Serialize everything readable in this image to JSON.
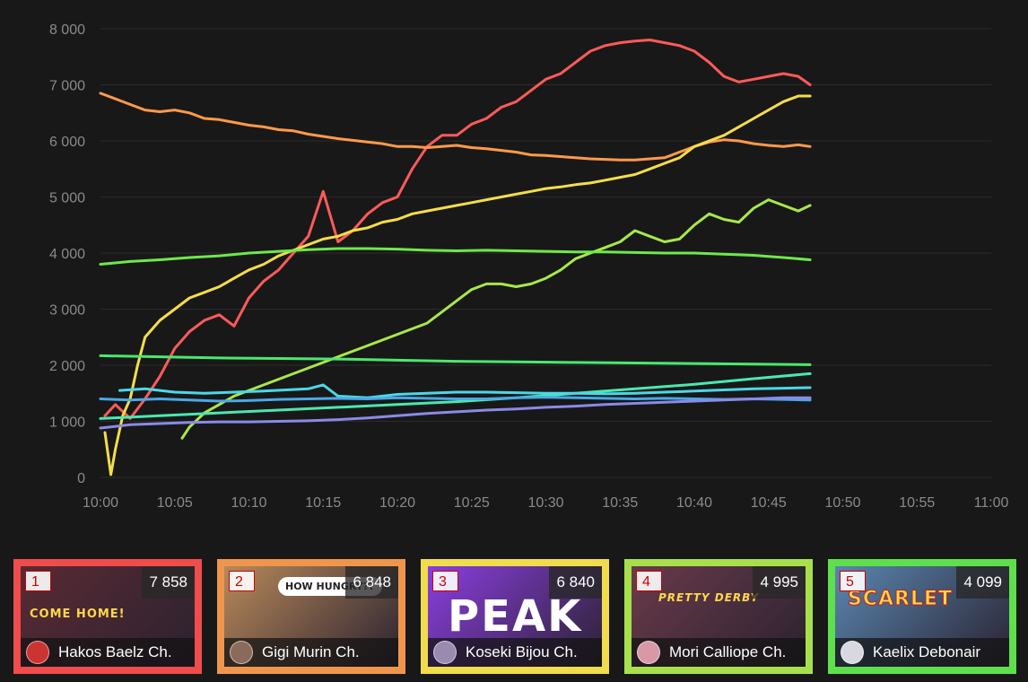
{
  "chart_data": {
    "type": "line",
    "x_ticks": [
      "10:00",
      "10:05",
      "10:10",
      "10:15",
      "10:20",
      "10:25",
      "10:30",
      "10:35",
      "10:40",
      "10:45",
      "10:50",
      "10:55",
      "11:00"
    ],
    "y_ticks": [
      "0",
      "1 000",
      "2 000",
      "3 000",
      "4 000",
      "5 000",
      "6 000",
      "7 000",
      "8 000"
    ],
    "xlim_minutes": [
      0,
      60
    ],
    "ylim": [
      0,
      8000
    ],
    "grid": "horizontal",
    "series": [
      {
        "color": "#ff5a5a",
        "x": [
          0.3,
          1,
          2,
          3,
          4,
          5,
          6,
          7,
          8,
          9,
          10,
          11,
          12,
          13,
          14,
          15,
          16,
          17,
          18,
          19,
          20,
          21,
          22,
          23,
          24,
          25,
          26,
          27,
          28,
          29,
          30,
          31,
          32,
          33,
          34,
          35,
          36,
          37,
          38,
          39,
          40,
          41,
          42,
          43,
          44,
          45,
          46,
          47,
          47.8
        ],
        "y": [
          1100,
          1300,
          1050,
          1400,
          1800,
          2300,
          2600,
          2800,
          2900,
          2700,
          3200,
          3500,
          3700,
          4000,
          4300,
          5100,
          4200,
          4400,
          4700,
          4900,
          5000,
          5500,
          5900,
          6100,
          6100,
          6300,
          6400,
          6600,
          6700,
          6900,
          7100,
          7200,
          7400,
          7600,
          7700,
          7750,
          7780,
          7800,
          7750,
          7700,
          7600,
          7400,
          7150,
          7050,
          7100,
          7150,
          7200,
          7150,
          7000
        ]
      },
      {
        "color": "#ff9a4a",
        "x": [
          0,
          1,
          2,
          3,
          4,
          5,
          6,
          7,
          8,
          9,
          10,
          11,
          12,
          13,
          14,
          15,
          16,
          17,
          18,
          19,
          20,
          21,
          22,
          23,
          24,
          25,
          26,
          27,
          28,
          29,
          30,
          31,
          32,
          33,
          34,
          35,
          36,
          37,
          38,
          39,
          40,
          41,
          42,
          43,
          44,
          45,
          46,
          47,
          47.8
        ],
        "y": [
          6850,
          6750,
          6650,
          6550,
          6520,
          6550,
          6500,
          6400,
          6380,
          6330,
          6280,
          6250,
          6200,
          6180,
          6120,
          6080,
          6040,
          6010,
          5980,
          5950,
          5900,
          5900,
          5880,
          5900,
          5920,
          5880,
          5860,
          5830,
          5800,
          5750,
          5740,
          5720,
          5700,
          5680,
          5670,
          5660,
          5660,
          5680,
          5700,
          5800,
          5900,
          5980,
          6020,
          6000,
          5950,
          5920,
          5900,
          5930,
          5900
        ]
      },
      {
        "color": "#f5dd4a",
        "x": [
          0.3,
          0.7,
          1,
          1.5,
          2,
          2.5,
          3,
          4,
          5,
          6,
          7,
          8,
          9,
          10,
          11,
          12,
          13,
          14,
          15,
          16,
          17,
          18,
          19,
          20,
          21,
          22,
          23,
          24,
          25,
          26,
          27,
          28,
          29,
          30,
          31,
          32,
          33,
          34,
          35,
          36,
          37,
          38,
          39,
          40,
          41,
          42,
          43,
          44,
          45,
          46,
          47,
          47.8
        ],
        "y": [
          800,
          50,
          500,
          1100,
          1400,
          2000,
          2500,
          2800,
          3000,
          3200,
          3300,
          3400,
          3550,
          3700,
          3800,
          3950,
          4050,
          4150,
          4250,
          4300,
          4400,
          4450,
          4550,
          4600,
          4700,
          4750,
          4800,
          4850,
          4900,
          4950,
          5000,
          5050,
          5100,
          5150,
          5180,
          5220,
          5250,
          5300,
          5350,
          5400,
          5500,
          5600,
          5700,
          5900,
          6000,
          6100,
          6250,
          6400,
          6550,
          6700,
          6800,
          6800
        ]
      },
      {
        "color": "#a8e84a",
        "x": [
          5.5,
          6,
          7,
          8,
          9,
          10,
          11,
          12,
          13,
          14,
          15,
          16,
          17,
          18,
          19,
          20,
          21,
          22,
          23,
          24,
          25,
          26,
          27,
          28,
          29,
          30,
          31,
          32,
          33,
          34,
          35,
          36,
          37,
          38,
          39,
          40,
          41,
          42,
          43,
          44,
          45,
          46,
          47,
          47.8
        ],
        "y": [
          700,
          900,
          1150,
          1300,
          1450,
          1550,
          1650,
          1750,
          1850,
          1950,
          2050,
          2150,
          2250,
          2350,
          2450,
          2550,
          2650,
          2750,
          2950,
          3150,
          3350,
          3450,
          3450,
          3400,
          3450,
          3550,
          3700,
          3900,
          4000,
          4100,
          4200,
          4400,
          4300,
          4200,
          4250,
          4500,
          4700,
          4600,
          4550,
          4800,
          4950,
          4850,
          4750,
          4850
        ]
      },
      {
        "color": "#6ee84a",
        "x": [
          0,
          2,
          4,
          6,
          8,
          10,
          12,
          14,
          16,
          18,
          20,
          22,
          24,
          26,
          28,
          30,
          32,
          34,
          36,
          38,
          40,
          42,
          44,
          46,
          47.8
        ],
        "y": [
          3800,
          3850,
          3880,
          3920,
          3950,
          4000,
          4030,
          4060,
          4080,
          4080,
          4070,
          4050,
          4040,
          4050,
          4040,
          4030,
          4020,
          4020,
          4010,
          4000,
          4000,
          3980,
          3960,
          3920,
          3880
        ]
      },
      {
        "color": "#4ae870",
        "x": [
          0,
          4,
          8,
          12,
          16,
          20,
          24,
          28,
          32,
          36,
          40,
          44,
          47.8
        ],
        "y": [
          2170,
          2150,
          2130,
          2120,
          2110,
          2090,
          2070,
          2060,
          2050,
          2040,
          2030,
          2020,
          2010
        ]
      },
      {
        "color": "#4ae8b0",
        "x": [
          0,
          4,
          8,
          12,
          16,
          20,
          24,
          28,
          32,
          36,
          40,
          44,
          47.8
        ],
        "y": [
          1050,
          1100,
          1150,
          1200,
          1250,
          1300,
          1350,
          1420,
          1500,
          1580,
          1660,
          1760,
          1850
        ]
      },
      {
        "color": "#4ad8e8",
        "x": [
          1.3,
          3,
          5,
          7,
          9,
          11,
          14,
          15,
          16,
          18,
          20,
          22,
          24,
          26,
          28,
          30,
          32,
          34,
          36,
          38,
          40,
          42,
          44,
          46,
          47.8
        ],
        "y": [
          1550,
          1580,
          1520,
          1500,
          1520,
          1540,
          1580,
          1650,
          1450,
          1420,
          1480,
          1500,
          1520,
          1520,
          1510,
          1500,
          1500,
          1490,
          1500,
          1520,
          1540,
          1560,
          1580,
          1590,
          1600
        ]
      },
      {
        "color": "#4aa8e8",
        "x": [
          0,
          2,
          4,
          6,
          8,
          10,
          12,
          14,
          16,
          18,
          20,
          22,
          24,
          26,
          28,
          30,
          32,
          34,
          36,
          38,
          40,
          42,
          44,
          46,
          47.8
        ],
        "y": [
          1400,
          1380,
          1400,
          1380,
          1360,
          1370,
          1390,
          1400,
          1410,
          1400,
          1420,
          1410,
          1400,
          1400,
          1420,
          1430,
          1420,
          1410,
          1400,
          1410,
          1400,
          1390,
          1400,
          1390,
          1380
        ]
      },
      {
        "color": "#8a8ae8",
        "x": [
          0,
          2,
          4,
          6,
          8,
          10,
          12,
          14,
          16,
          18,
          20,
          22,
          24,
          26,
          28,
          30,
          32,
          34,
          36,
          38,
          40,
          42,
          44,
          46,
          47.8
        ],
        "y": [
          880,
          940,
          960,
          980,
          990,
          990,
          1000,
          1010,
          1030,
          1060,
          1100,
          1140,
          1170,
          1200,
          1220,
          1250,
          1270,
          1300,
          1320,
          1340,
          1360,
          1380,
          1400,
          1420,
          1420
        ]
      }
    ]
  },
  "cards": [
    {
      "rank": "1",
      "count": "7 858",
      "name": "Hakos Baelz Ch.",
      "border": "#f04c4c",
      "bg": "#5a2a33",
      "avatar": "#c33",
      "thumb_text": "COME HOME!",
      "thumb_color": "#ffd84a"
    },
    {
      "rank": "2",
      "count": "6 848",
      "name": "Gigi Murin Ch.",
      "border": "#f0964c",
      "bg": "#b8895a",
      "avatar": "#8a6a5a",
      "thumb_text": "HOW HUNGRY??",
      "thumb_color": "#ffffff"
    },
    {
      "rank": "3",
      "count": "6 840",
      "name": "Koseki Bijou Ch.",
      "border": "#f0dc4c",
      "bg": "#8a3ee0",
      "avatar": "#9a8ab0",
      "thumb_text": "PEAK",
      "thumb_color": "#ffffff"
    },
    {
      "rank": "4",
      "count": "4 995",
      "name": "Mori Calliope Ch.",
      "border": "#a8e04c",
      "bg": "#6a3a4a",
      "avatar": "#d898a8",
      "thumb_text": "PRETTY DERBY",
      "thumb_color": "#ffd84a"
    },
    {
      "rank": "5",
      "count": "4 099",
      "name": "Kaelix Debonair",
      "border": "#5ee04c",
      "bg": "#5a86b0",
      "avatar": "#d8d8e0",
      "thumb_text": "SCARLET",
      "thumb_color": "#ffd84a"
    }
  ]
}
